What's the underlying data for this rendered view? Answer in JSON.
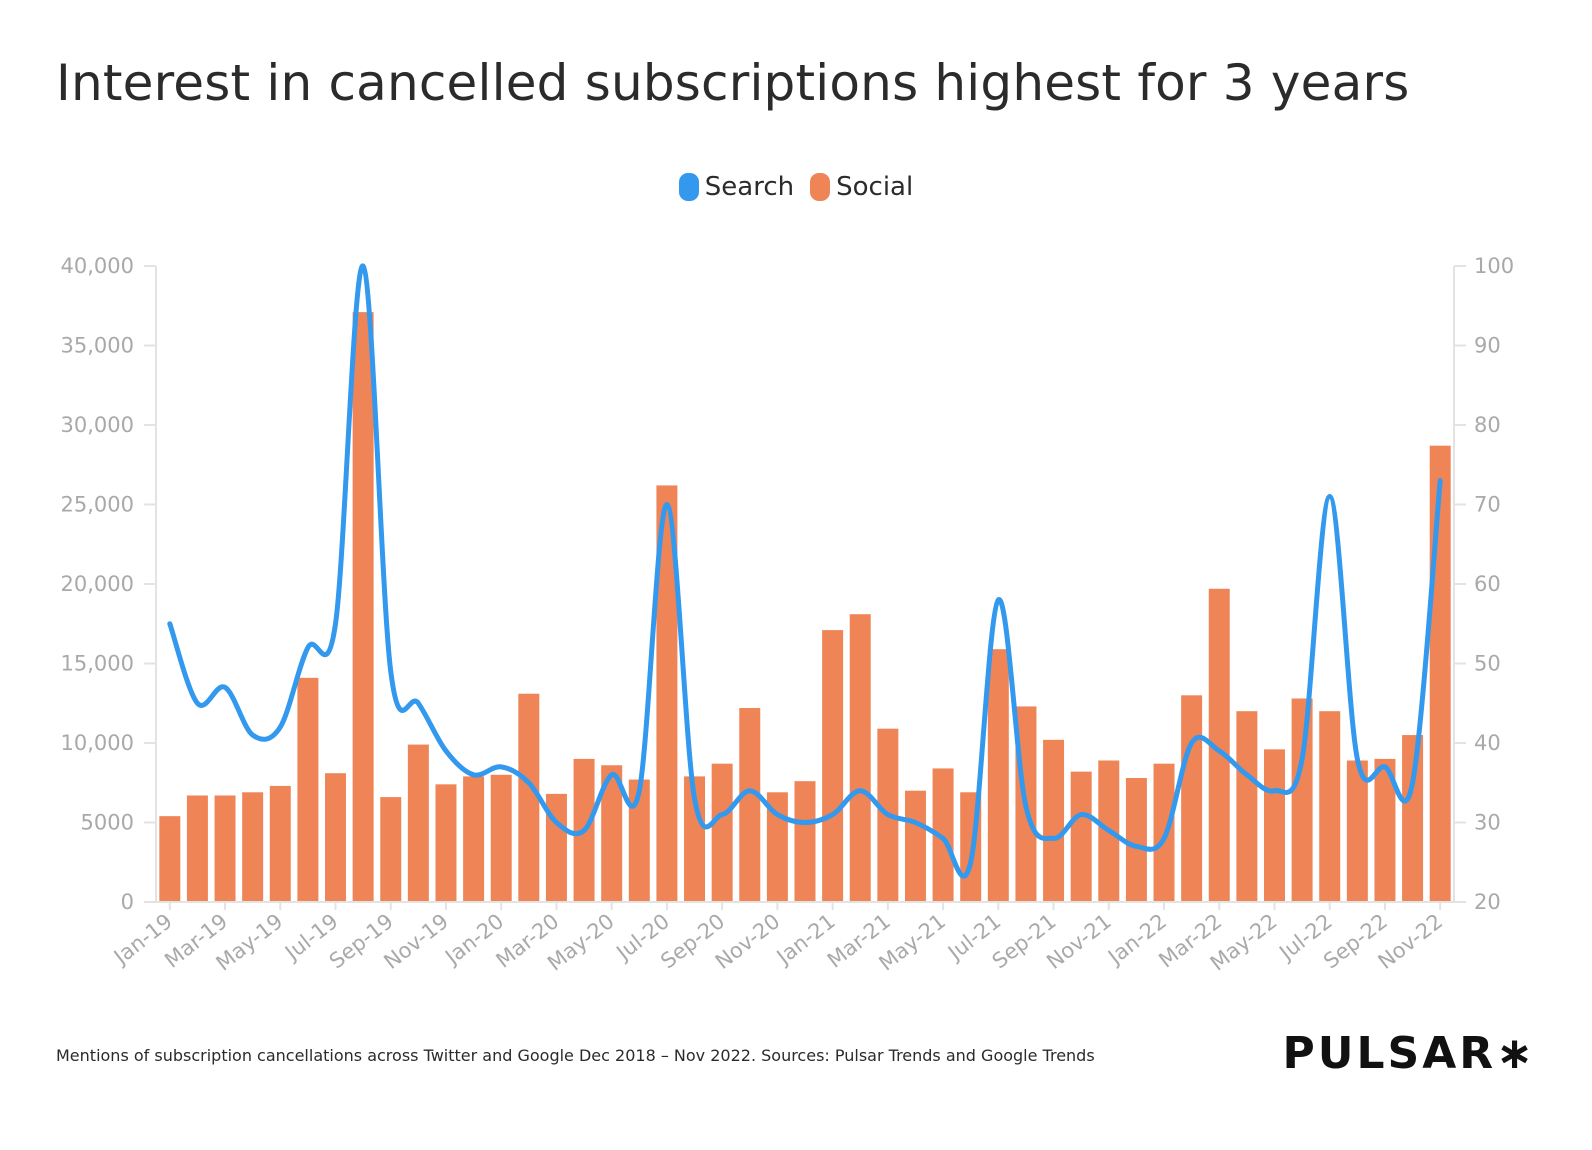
{
  "title": "Interest in cancelled subscriptions highest for 3 years",
  "legend": {
    "search_label": "Search",
    "social_label": "Social"
  },
  "footer_note": "Mentions of subscription cancellations across Twitter and Google Dec 2018 – Nov 2022. Sources: Pulsar Trends and Google Trends",
  "brand": "PULSAR∗",
  "colors": {
    "search": "#3399ee",
    "social": "#ef8557",
    "axis": "#e3e3e3",
    "tick_text": "#a9a9a9"
  },
  "chart_data": {
    "type": "bar+line",
    "categories": [
      "Jan-19",
      "Feb-19",
      "Mar-19",
      "Apr-19",
      "May-19",
      "Jun-19",
      "Jul-19",
      "Aug-19",
      "Sep-19",
      "Oct-19",
      "Nov-19",
      "Dec-19",
      "Jan-20",
      "Feb-20",
      "Mar-20",
      "Apr-20",
      "May-20",
      "Jun-20",
      "Jul-20",
      "Aug-20",
      "Sep-20",
      "Oct-20",
      "Nov-20",
      "Dec-20",
      "Jan-21",
      "Feb-21",
      "Mar-21",
      "Apr-21",
      "May-21",
      "Jun-21",
      "Jul-21",
      "Aug-21",
      "Sep-21",
      "Oct-21",
      "Nov-21",
      "Dec-21",
      "Jan-22",
      "Feb-22",
      "Mar-22",
      "Apr-22",
      "May-22",
      "Jun-22",
      "Jul-22",
      "Aug-22",
      "Sep-22",
      "Oct-22",
      "Nov-22"
    ],
    "x_tick_labels": [
      "Jan-19",
      "Mar-19",
      "May-19",
      "Jul-19",
      "Sep-19",
      "Nov-19",
      "Jan-20",
      "Mar-20",
      "May-20",
      "Jul-20",
      "Sep-20",
      "Nov-20",
      "Jan-21",
      "Mar-21",
      "May-21",
      "Jul-21",
      "Sep-21",
      "Nov-21",
      "Jan-22",
      "Mar-22",
      "May-22",
      "Jul-22",
      "Sep-22",
      "Nov-22"
    ],
    "series": [
      {
        "name": "Social",
        "type": "bar",
        "axis": "left",
        "values": [
          5400,
          6700,
          6700,
          6900,
          7300,
          14100,
          8100,
          37100,
          6600,
          9900,
          7400,
          7900,
          8000,
          13100,
          6800,
          9000,
          8600,
          7700,
          26200,
          7900,
          8700,
          12200,
          6900,
          7600,
          17100,
          18100,
          10900,
          7000,
          8400,
          6900,
          15900,
          12300,
          10200,
          8200,
          8900,
          7800,
          8700,
          13000,
          19700,
          12000,
          9600,
          12800,
          12000,
          8900,
          9000,
          10500,
          28700
        ]
      },
      {
        "name": "Search",
        "type": "line",
        "axis": "right",
        "values": [
          55,
          45,
          47,
          41,
          42,
          52,
          55,
          100,
          49,
          45,
          39,
          36,
          37,
          35,
          30,
          29,
          36,
          34,
          70,
          33,
          31,
          34,
          31,
          30,
          31,
          34,
          31,
          30,
          28,
          25,
          58,
          32,
          28,
          31,
          29,
          27,
          28,
          40,
          39,
          36,
          34,
          38,
          71,
          38,
          37,
          35,
          73
        ]
      }
    ],
    "y_left": {
      "min": 0,
      "max": 40000,
      "ticks": [
        "0",
        "5000",
        "10,000",
        "15,000",
        "20,000",
        "25,000",
        "30,000",
        "35,000",
        "40,000"
      ]
    },
    "y_right": {
      "min": 20,
      "max": 100,
      "ticks": [
        "20",
        "30",
        "40",
        "50",
        "60",
        "70",
        "80",
        "90",
        "100"
      ]
    },
    "legend_position": "top-center",
    "grid": false
  }
}
